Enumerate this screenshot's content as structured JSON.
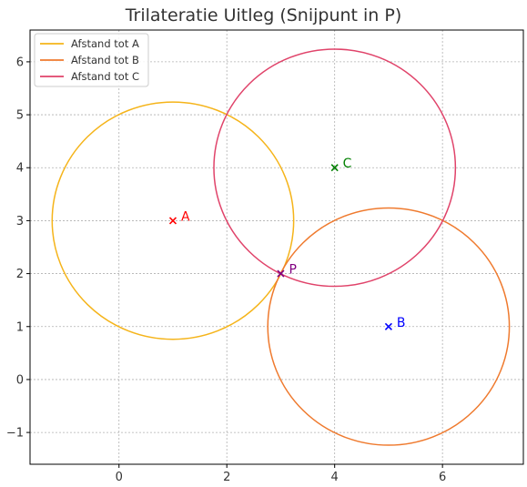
{
  "chart_data": {
    "type": "scatter",
    "title": "Trilateratie Uitleg (Snijpunt in P)",
    "xlabel": "",
    "ylabel": "",
    "xlim": [
      -1.65,
      7.5
    ],
    "ylim": [
      -1.6,
      6.6
    ],
    "x_ticks": [
      0,
      2,
      4,
      6
    ],
    "y_ticks": [
      -1,
      0,
      1,
      2,
      3,
      4,
      5,
      6
    ],
    "y_tick_labels": [
      "−1",
      "0",
      "1",
      "2",
      "3",
      "4",
      "5",
      "6"
    ],
    "grid": true,
    "legend_position": "top-left",
    "series": [
      {
        "name": "Afstand tot A",
        "center": [
          1,
          3
        ],
        "radius": 2.24,
        "color": "#f5b41a"
      },
      {
        "name": "Afstand tot B",
        "center": [
          5,
          1
        ],
        "radius": 2.24,
        "color": "#ef7a2e"
      },
      {
        "name": "Afstand tot C",
        "center": [
          4,
          4
        ],
        "radius": 2.24,
        "color": "#e0436a"
      }
    ],
    "points": [
      {
        "label": "A",
        "x": 1,
        "y": 3,
        "color": "#ff0000"
      },
      {
        "label": "B",
        "x": 5,
        "y": 1,
        "color": "#0000ff"
      },
      {
        "label": "C",
        "x": 4,
        "y": 4,
        "color": "#008000"
      },
      {
        "label": "P",
        "x": 3,
        "y": 2,
        "color": "#800080"
      }
    ]
  }
}
